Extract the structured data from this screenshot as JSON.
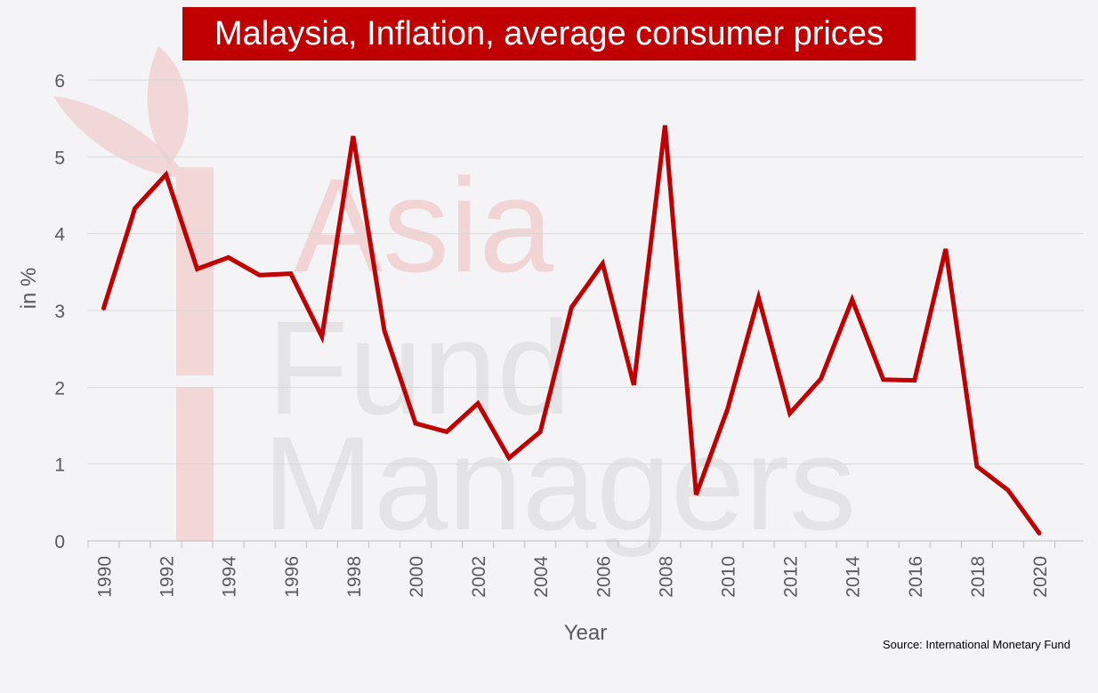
{
  "chart_data": {
    "type": "line",
    "title": "Malaysia, Inflation, average consumer prices",
    "xlabel": "Year",
    "ylabel": "in %",
    "ylim": [
      0,
      6
    ],
    "yticks": [
      0,
      1,
      2,
      3,
      4,
      5,
      6
    ],
    "xticks": [
      1990,
      1992,
      1994,
      1996,
      1998,
      2000,
      2002,
      2004,
      2006,
      2008,
      2010,
      2012,
      2014,
      2016,
      2018,
      2020
    ],
    "grid": true,
    "series": [
      {
        "color": "#c00000",
        "x": [
          1990,
          1991,
          1992,
          1993,
          1994,
          1995,
          1996,
          1997,
          1998,
          1999,
          2000,
          2001,
          2002,
          2003,
          2004,
          2005,
          2006,
          2007,
          2008,
          2009,
          2010,
          2011,
          2012,
          2013,
          2014,
          2015,
          2016,
          2017,
          2018,
          2019,
          2020
        ],
        "values": [
          3.03,
          4.33,
          4.77,
          3.54,
          3.69,
          3.46,
          3.48,
          2.66,
          5.27,
          2.74,
          1.53,
          1.42,
          1.79,
          1.08,
          1.42,
          3.04,
          3.61,
          2.03,
          5.41,
          0.6,
          1.71,
          3.17,
          1.66,
          2.11,
          3.14,
          2.1,
          2.09,
          3.8,
          0.97,
          0.66,
          0.1
        ]
      }
    ]
  },
  "source": "Source: International Monetary Fund",
  "watermark": {
    "lines": [
      "Asia",
      "Fund",
      "Managers"
    ]
  }
}
